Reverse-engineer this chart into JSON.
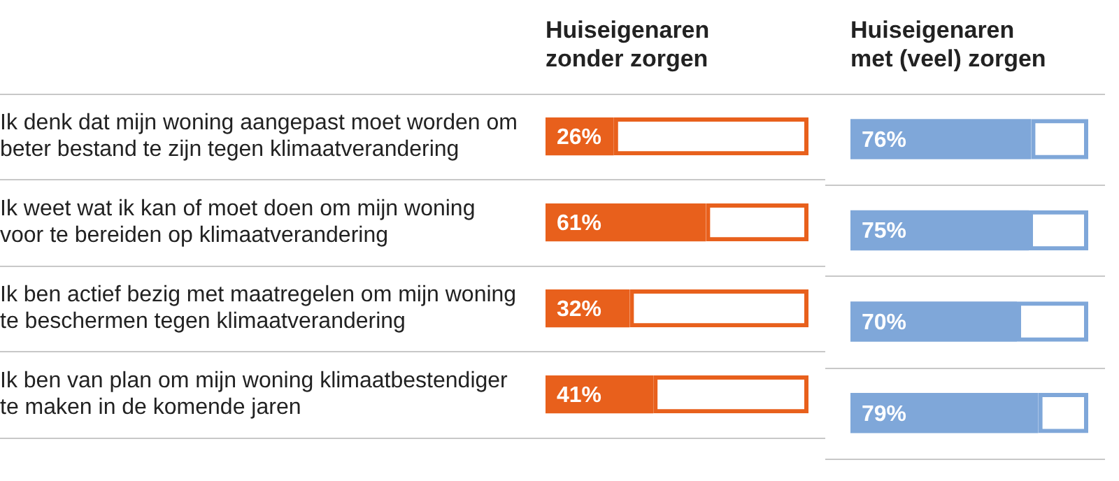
{
  "chart_data": [
    {
      "type": "bar",
      "orientation": "horizontal",
      "stacked": true,
      "title": "Huiseigenaren zonder zorgen",
      "categories": [
        "Ik denk dat mijn woning aangepast moet worden om beter bestand te zijn tegen klimaatverandering",
        "Ik weet wat ik kan of moet doen om mijn woning voor te bereiden op klimaatverandering",
        "Ik ben actief bezig met maatregelen om mijn woning te beschermen tegen klimaatverandering",
        "Ik ben van plan om mijn woning klimaatbestendiger te maken in de komende jaren"
      ],
      "series": [
        {
          "color": "#e8601c",
          "values": [
            26,
            61,
            32,
            41
          ],
          "value_labels": [
            "26%",
            "61%",
            "32%",
            "41%"
          ]
        },
        {
          "color": "#e8601c",
          "values": [
            74,
            39,
            68,
            59
          ]
        }
      ],
      "xlim": [
        0,
        100
      ],
      "tick_labels": "y",
      "grid": "y",
      "legend": false
    },
    {
      "type": "bar",
      "orientation": "horizontal",
      "stacked": true,
      "title": "Huiseigenaren met (veel) zorgen",
      "categories": [
        null,
        null,
        null,
        null
      ],
      "series": [
        {
          "color": "#7fa7d9",
          "values": [
            76,
            75,
            70,
            79
          ],
          "value_labels": [
            "76%",
            "75%",
            "70%",
            "79%"
          ]
        },
        {
          "color": "#7fa7d9",
          "values": [
            24,
            25,
            30,
            21
          ]
        }
      ],
      "xlim": [
        0,
        100
      ],
      "tick_labels": false,
      "grid": "y",
      "legend": false
    }
  ]
}
